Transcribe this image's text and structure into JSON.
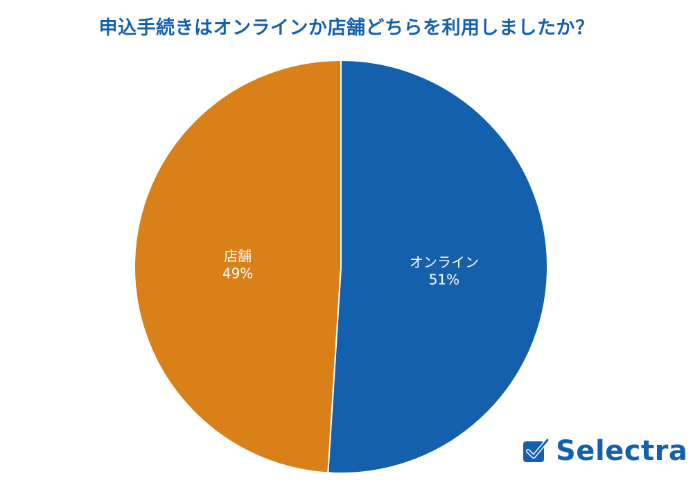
{
  "chart_data": {
    "type": "pie",
    "title": "申込手続きはオンラインか店舗どちらを利用しましたか？",
    "slices": [
      {
        "label": "オンライン",
        "value": 51,
        "value_label": "51%",
        "color": "#1560ac"
      },
      {
        "label": "店舗",
        "value": 49,
        "value_label": "49%",
        "color": "#d98019"
      }
    ]
  },
  "brand": {
    "name": "Selectra",
    "icon": "checkbox-check-icon",
    "color": "#1560ac"
  }
}
